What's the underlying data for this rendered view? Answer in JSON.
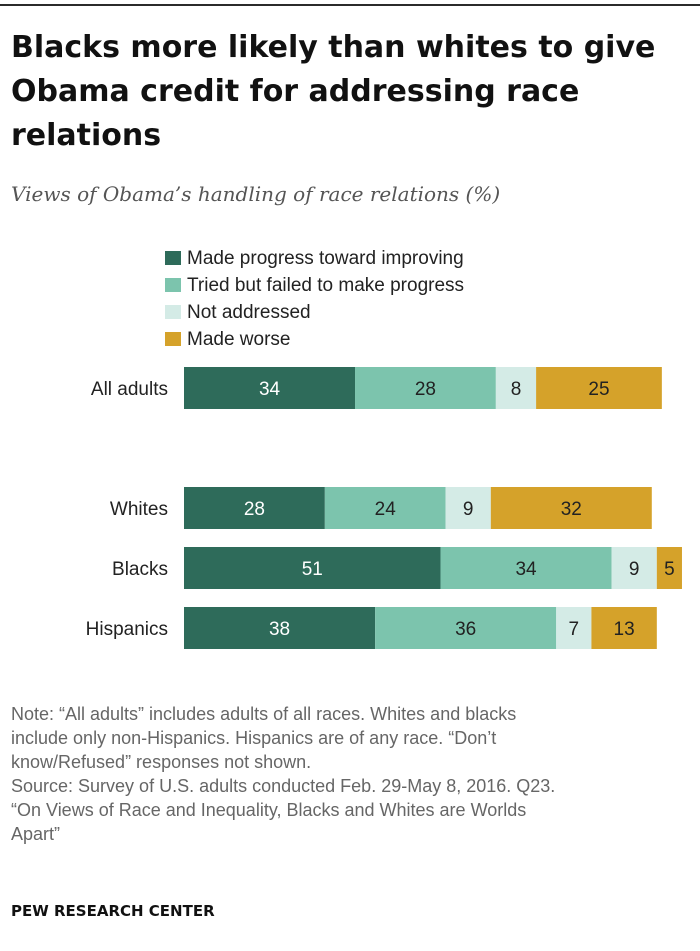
{
  "title": "Blacks more likely than whites to give Obama credit for addressing race relations",
  "subtitle": "Views of Obama’s handling of race relations (%)",
  "notes": {
    "note": "Note: “All adults” includes adults of all races. Whites and blacks include only non-Hispanics. Hispanics are of any race. “Don’t know/Refused” responses not shown.",
    "source": "Source: Survey of U.S. adults conducted Feb. 29-May 8, 2016. Q23. “On Views of Race and Inequality, Blacks and Whites are Worlds Apart”"
  },
  "credit": "PEW RESEARCH CENTER",
  "chart_data": {
    "type": "bar",
    "orientation": "horizontal",
    "stacked": true,
    "categories": [
      "All adults",
      "Whites",
      "Blacks",
      "Hispanics"
    ],
    "series": [
      {
        "name": "Made progress toward improving",
        "color": "#2e6b5a",
        "values": [
          34,
          28,
          51,
          38
        ]
      },
      {
        "name": "Tried but failed to make progress",
        "color": "#7cc4ad",
        "values": [
          28,
          24,
          34,
          36
        ]
      },
      {
        "name": "Not addressed",
        "color": "#d4ebe6",
        "values": [
          8,
          9,
          9,
          7
        ]
      },
      {
        "name": "Made worse",
        "color": "#d5a22a",
        "values": [
          25,
          32,
          5,
          13
        ]
      }
    ],
    "legend_position": "top",
    "unit": "%"
  }
}
